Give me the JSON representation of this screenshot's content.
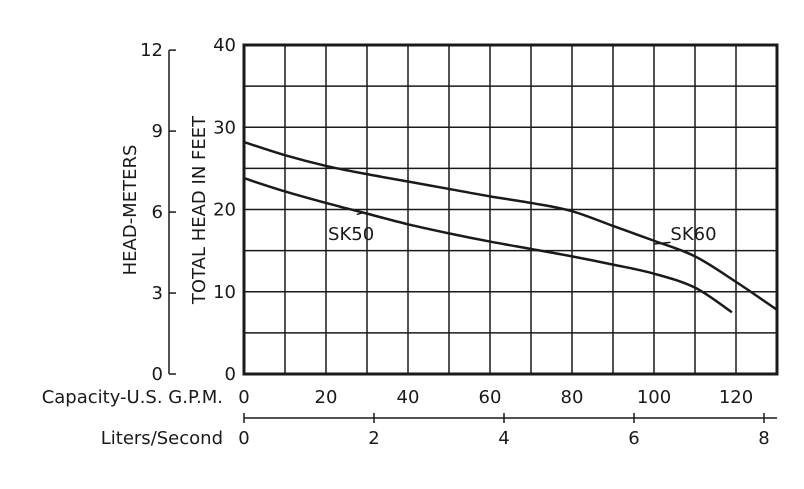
{
  "chart_data": {
    "type": "line",
    "x_gpm": {
      "label": "Capacity-U.S. G.P.M.",
      "ticks": [
        0,
        20,
        40,
        60,
        80,
        100,
        120
      ],
      "grid_step": 10,
      "range": [
        0,
        130
      ]
    },
    "x_lps": {
      "label": "Liters/Second",
      "ticks": [
        0,
        2,
        4,
        6,
        8
      ],
      "range": [
        0,
        8.2
      ]
    },
    "y_feet": {
      "label": "TOTAL HEAD IN FEET",
      "ticks": [
        0,
        10,
        20,
        30,
        40
      ],
      "grid_step": 5,
      "range": [
        0,
        40
      ]
    },
    "y_meters": {
      "label": "HEAD-METERS",
      "ticks": [
        0,
        3,
        6,
        9,
        12
      ],
      "range": [
        0,
        12.19
      ]
    },
    "grid": true,
    "series": [
      {
        "name": "SK60",
        "x": [
          0,
          10,
          20,
          30,
          40,
          50,
          60,
          70,
          80,
          90,
          100,
          110,
          120,
          130
        ],
        "y": [
          28.2,
          26.6,
          25.3,
          24.3,
          23.4,
          22.5,
          21.6,
          20.8,
          19.8,
          18.0,
          16.2,
          14.3,
          11.2,
          7.8
        ]
      },
      {
        "name": "SK50",
        "x": [
          0,
          10,
          20,
          30,
          40,
          50,
          60,
          70,
          80,
          90,
          100,
          110,
          119
        ],
        "y": [
          23.8,
          22.2,
          20.8,
          19.5,
          18.2,
          17.1,
          16.1,
          15.2,
          14.3,
          13.3,
          12.2,
          10.5,
          7.5
        ]
      }
    ]
  }
}
